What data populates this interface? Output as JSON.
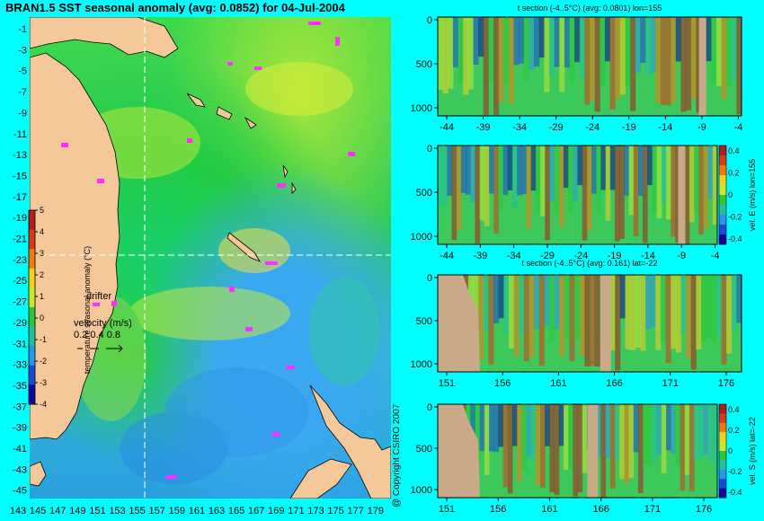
{
  "title": "BRAN1.5 SST seasonal anomaly (avg: 0.0852) for 04-Jul-2004",
  "copyright": "@ Copyright CSIRO 2007",
  "map": {
    "lat_ticks": [
      "-1",
      "-3",
      "-5",
      "-7",
      "-9",
      "-11",
      "-13",
      "-15",
      "-17",
      "-19",
      "-21",
      "-23",
      "-25",
      "-27",
      "-29",
      "-31",
      "-33",
      "-35",
      "-37",
      "-39",
      "-41",
      "-43",
      "-45"
    ],
    "lon_ticks": [
      "143",
      "145",
      "147",
      "149",
      "151",
      "153",
      "155",
      "157",
      "159",
      "161",
      "163",
      "165",
      "167",
      "169",
      "171",
      "173",
      "175",
      "177",
      "179"
    ],
    "colorbar": {
      "label": "temperature seasonal anomaly (°C)",
      "ticks": [
        "5",
        "4",
        "3",
        "2",
        "1",
        "0",
        "-1",
        "-2",
        "-3",
        "-4"
      ],
      "colors": [
        "#b01e1e",
        "#d83a1a",
        "#f07a10",
        "#f2d020",
        "#c8e830",
        "#28c838",
        "#20c0a0",
        "#2a96e8",
        "#1a48d8",
        "#0a0a9a"
      ]
    },
    "drifter_label": "drifter",
    "velocity_label": "velocity (m/s)",
    "velocity_values": "0.2 0.4 0.8",
    "crosshair": {
      "lon": 155,
      "lat": -22
    }
  },
  "panels": [
    {
      "id": "t-lon",
      "title": "t section (-4..5°C) (avg: 0.0801) lon=155",
      "y_ticks": [
        "0",
        "500",
        "1000"
      ],
      "x_ticks": [
        "-44",
        "-39",
        "-34",
        "-29",
        "-24",
        "-19",
        "-14",
        "-9",
        "-4"
      ],
      "colorbar": null
    },
    {
      "id": "vel-e",
      "title": "",
      "y_ticks": [
        "0",
        "500",
        "1000"
      ],
      "x_ticks": [
        "-44",
        "-39",
        "-34",
        "-29",
        "-24",
        "-19",
        "-14",
        "-9",
        "-4"
      ],
      "colorbar": {
        "label": "vel. E (m/s) lon=155",
        "ticks": [
          "0.4",
          "0.2",
          "0",
          "-0.2",
          "-0.4"
        ]
      }
    },
    {
      "id": "t-lat",
      "title": "t section (-4..5°C) (avg: 0.161) lat=-22",
      "y_ticks": [
        "0",
        "500",
        "1000"
      ],
      "x_ticks": [
        "151",
        "156",
        "161",
        "166",
        "171",
        "176"
      ],
      "colorbar": null
    },
    {
      "id": "vel-s",
      "title": "",
      "y_ticks": [
        "0",
        "500",
        "1000"
      ],
      "x_ticks": [
        "151",
        "156",
        "161",
        "166",
        "171",
        "176"
      ],
      "colorbar": {
        "label": "vel. S (m/s) lat=-22",
        "ticks": [
          "0.4",
          "0.2",
          "0",
          "-0.2",
          "-0.4"
        ]
      }
    }
  ]
}
